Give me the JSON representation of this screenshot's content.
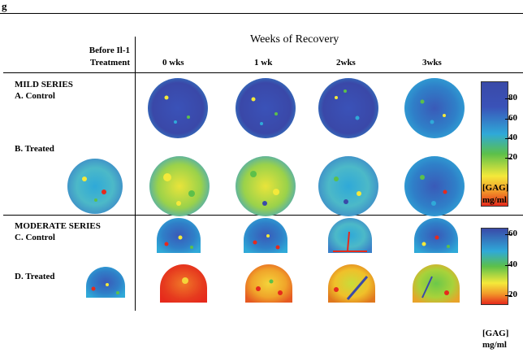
{
  "figure": {
    "label": "g",
    "header_title": "Weeks of Recovery",
    "before_treatment": [
      "Before Il-1",
      "Treatment"
    ],
    "columns": [
      "0 wks",
      "1 wk",
      "2wks",
      "3wks"
    ]
  },
  "mild": {
    "series": "MILD SERIES",
    "row_a": "A. Control",
    "row_b": "B. Treated",
    "scale_ticks": [
      "80",
      "60",
      "40",
      "20"
    ],
    "scale_label": [
      "[GAG]",
      "mg/ml"
    ]
  },
  "moderate": {
    "series": "MODERATE SERIES",
    "row_c": "C. Control",
    "row_d": "D. Treated",
    "scale_ticks": [
      "60",
      "40",
      "20"
    ],
    "scale_label": [
      "[GAG]",
      "mg/ml"
    ]
  },
  "colors": {
    "blue": "#3a4aa8",
    "cyan": "#2fa9d8",
    "green": "#5cc04a",
    "yellow": "#f4e93a",
    "orange": "#f29a2a",
    "red": "#e62a1c"
  }
}
